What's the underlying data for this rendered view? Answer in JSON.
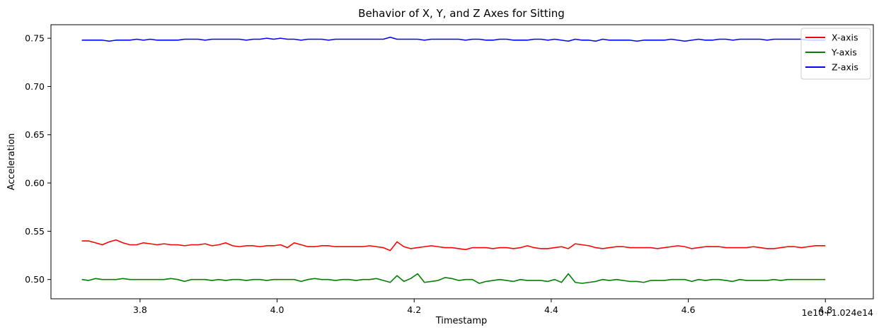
{
  "chart_data": {
    "type": "line",
    "title": "Behavior of X, Y, and Z Axes for Sitting",
    "xlabel": "Timestamp",
    "ylabel": "Acceleration",
    "x_offset_label": "1e10+1.024e14",
    "xlim": [
      3.67,
      4.87
    ],
    "ylim": [
      0.48,
      0.764
    ],
    "x_ticks": [
      3.8,
      4.0,
      4.2,
      4.4,
      4.6,
      4.8
    ],
    "x_tick_labels": [
      "3.8",
      "4.0",
      "4.2",
      "4.4",
      "4.6",
      "4.8"
    ],
    "y_ticks": [
      0.5,
      0.55,
      0.6,
      0.65,
      0.7,
      0.75
    ],
    "y_tick_labels": [
      "0.50",
      "0.55",
      "0.60",
      "0.65",
      "0.70",
      "0.75"
    ],
    "grid": false,
    "legend_position": "top-right",
    "x": [
      3.715,
      3.725,
      3.735,
      3.745,
      3.755,
      3.765,
      3.775,
      3.785,
      3.795,
      3.805,
      3.815,
      3.825,
      3.835,
      3.845,
      3.855,
      3.865,
      3.875,
      3.885,
      3.895,
      3.905,
      3.915,
      3.925,
      3.935,
      3.945,
      3.955,
      3.965,
      3.975,
      3.985,
      3.995,
      4.005,
      4.015,
      4.025,
      4.035,
      4.045,
      4.055,
      4.065,
      4.075,
      4.085,
      4.095,
      4.105,
      4.115,
      4.125,
      4.135,
      4.145,
      4.155,
      4.165,
      4.175,
      4.185,
      4.195,
      4.205,
      4.215,
      4.225,
      4.235,
      4.245,
      4.255,
      4.265,
      4.275,
      4.285,
      4.295,
      4.305,
      4.315,
      4.325,
      4.335,
      4.345,
      4.355,
      4.365,
      4.375,
      4.385,
      4.395,
      4.405,
      4.415,
      4.425,
      4.435,
      4.445,
      4.455,
      4.465,
      4.475,
      4.485,
      4.495,
      4.505,
      4.515,
      4.525,
      4.535,
      4.545,
      4.555,
      4.565,
      4.575,
      4.585,
      4.595,
      4.605,
      4.615,
      4.625,
      4.635,
      4.645,
      4.655,
      4.665,
      4.675,
      4.685,
      4.695,
      4.705,
      4.715,
      4.725,
      4.735,
      4.745,
      4.755,
      4.765,
      4.775,
      4.785,
      4.795,
      4.8
    ],
    "series": [
      {
        "name": "X-axis",
        "color": "#ff0000",
        "values": [
          0.54,
          0.54,
          0.538,
          0.536,
          0.539,
          0.541,
          0.538,
          0.536,
          0.536,
          0.538,
          0.537,
          0.536,
          0.537,
          0.536,
          0.536,
          0.535,
          0.536,
          0.536,
          0.537,
          0.535,
          0.536,
          0.538,
          0.535,
          0.534,
          0.535,
          0.535,
          0.534,
          0.535,
          0.535,
          0.536,
          0.533,
          0.538,
          0.536,
          0.534,
          0.534,
          0.535,
          0.535,
          0.534,
          0.534,
          0.534,
          0.534,
          0.534,
          0.535,
          0.534,
          0.533,
          0.53,
          0.539,
          0.534,
          0.532,
          0.533,
          0.534,
          0.535,
          0.534,
          0.533,
          0.533,
          0.532,
          0.531,
          0.533,
          0.533,
          0.533,
          0.532,
          0.533,
          0.533,
          0.532,
          0.533,
          0.535,
          0.533,
          0.532,
          0.532,
          0.533,
          0.534,
          0.532,
          0.537,
          0.536,
          0.535,
          0.533,
          0.532,
          0.533,
          0.534,
          0.534,
          0.533,
          0.533,
          0.533,
          0.533,
          0.532,
          0.533,
          0.534,
          0.535,
          0.534,
          0.532,
          0.533,
          0.534,
          0.534,
          0.534,
          0.533,
          0.533,
          0.533,
          0.533,
          0.534,
          0.533,
          0.532,
          0.532,
          0.533,
          0.534,
          0.534,
          0.533,
          0.534,
          0.535,
          0.535,
          0.535
        ]
      },
      {
        "name": "Y-axis",
        "color": "#008000",
        "values": [
          0.5,
          0.499,
          0.501,
          0.5,
          0.5,
          0.5,
          0.501,
          0.5,
          0.5,
          0.5,
          0.5,
          0.5,
          0.5,
          0.501,
          0.5,
          0.498,
          0.5,
          0.5,
          0.5,
          0.499,
          0.5,
          0.499,
          0.5,
          0.5,
          0.499,
          0.5,
          0.5,
          0.499,
          0.5,
          0.5,
          0.5,
          0.5,
          0.498,
          0.5,
          0.501,
          0.5,
          0.5,
          0.499,
          0.5,
          0.5,
          0.499,
          0.5,
          0.5,
          0.501,
          0.499,
          0.497,
          0.504,
          0.498,
          0.501,
          0.506,
          0.497,
          0.498,
          0.499,
          0.502,
          0.501,
          0.499,
          0.5,
          0.5,
          0.496,
          0.498,
          0.499,
          0.5,
          0.499,
          0.498,
          0.5,
          0.499,
          0.499,
          0.499,
          0.498,
          0.5,
          0.497,
          0.506,
          0.497,
          0.496,
          0.497,
          0.498,
          0.5,
          0.499,
          0.5,
          0.499,
          0.498,
          0.498,
          0.497,
          0.499,
          0.499,
          0.499,
          0.5,
          0.5,
          0.5,
          0.498,
          0.5,
          0.499,
          0.5,
          0.5,
          0.499,
          0.498,
          0.5,
          0.499,
          0.499,
          0.499,
          0.499,
          0.5,
          0.499,
          0.5,
          0.5,
          0.5,
          0.5,
          0.5,
          0.5,
          0.5
        ]
      },
      {
        "name": "Z-axis",
        "color": "#0000ff",
        "values": [
          0.748,
          0.748,
          0.748,
          0.748,
          0.747,
          0.748,
          0.748,
          0.748,
          0.749,
          0.748,
          0.749,
          0.748,
          0.748,
          0.748,
          0.748,
          0.749,
          0.749,
          0.749,
          0.748,
          0.749,
          0.749,
          0.749,
          0.749,
          0.749,
          0.748,
          0.749,
          0.749,
          0.75,
          0.749,
          0.75,
          0.749,
          0.749,
          0.748,
          0.749,
          0.749,
          0.749,
          0.748,
          0.749,
          0.749,
          0.749,
          0.749,
          0.749,
          0.749,
          0.749,
          0.749,
          0.751,
          0.749,
          0.749,
          0.749,
          0.749,
          0.748,
          0.749,
          0.749,
          0.749,
          0.749,
          0.749,
          0.748,
          0.749,
          0.749,
          0.748,
          0.748,
          0.749,
          0.749,
          0.748,
          0.748,
          0.748,
          0.749,
          0.749,
          0.748,
          0.749,
          0.748,
          0.747,
          0.749,
          0.748,
          0.748,
          0.747,
          0.749,
          0.748,
          0.748,
          0.748,
          0.748,
          0.747,
          0.748,
          0.748,
          0.748,
          0.748,
          0.749,
          0.748,
          0.747,
          0.748,
          0.749,
          0.748,
          0.748,
          0.749,
          0.749,
          0.748,
          0.749,
          0.749,
          0.749,
          0.749,
          0.748,
          0.749,
          0.749,
          0.749,
          0.749,
          0.749,
          0.748,
          0.748,
          0.748,
          0.748
        ]
      }
    ]
  }
}
